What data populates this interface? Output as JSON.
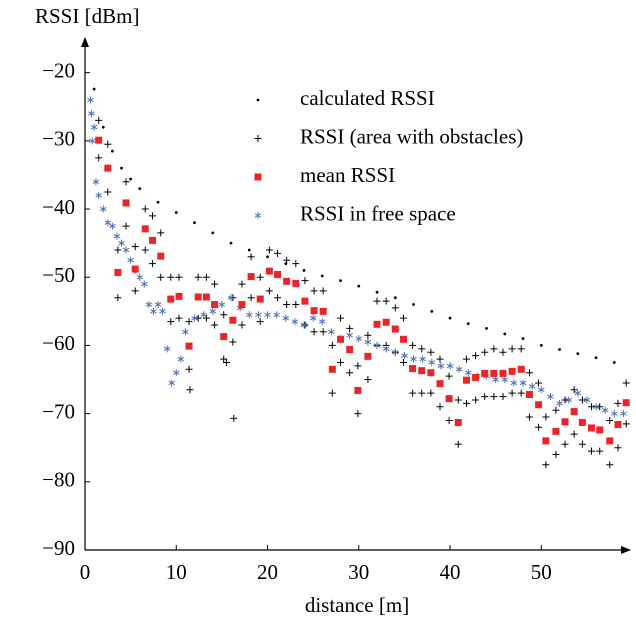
{
  "chart_data": {
    "type": "scatter",
    "xlabel": "distance [m]",
    "ylabel": "RSSI [dBm]",
    "xlim": [
      0,
      59.5
    ],
    "ylim": [
      -90,
      -15.5
    ],
    "xticks": [
      0,
      10,
      20,
      30,
      40,
      50
    ],
    "yticks": [
      {
        "value": -90,
        "label": "−90"
      },
      {
        "value": -80,
        "label": "−80"
      },
      {
        "value": -70,
        "label": "−70"
      },
      {
        "value": -60,
        "label": "−60"
      },
      {
        "value": -50,
        "label": "−50"
      },
      {
        "value": -40,
        "label": "−40"
      },
      {
        "value": -30,
        "label": "−30"
      },
      {
        "value": -20,
        "label": "−20"
      }
    ],
    "legend": "upper right",
    "series": [
      {
        "name": "calculated RSSI",
        "color": "#000000",
        "marker": "dot",
        "x": [
          1,
          2,
          3,
          4,
          5,
          6,
          8,
          10,
          12,
          14,
          16,
          18,
          20,
          22,
          24,
          26,
          28,
          30,
          32,
          34,
          36,
          38,
          40,
          42,
          44,
          46,
          48,
          50,
          52,
          54,
          56,
          58
        ],
        "values": [
          -22.4,
          -28,
          -31.5,
          -34,
          -35.6,
          -37,
          -39,
          -40.5,
          -42,
          -43.5,
          -45,
          -46,
          -47,
          -48,
          -49,
          -49.8,
          -50.5,
          -51.3,
          -52.2,
          -53,
          -54,
          -55,
          -56,
          -56.8,
          -57.5,
          -58.3,
          -59,
          -60,
          -60.6,
          -61.2,
          -61.8,
          -62.5
        ]
      },
      {
        "name": "RSSI (area with obstacles)",
        "color": "#000000",
        "marker": "plus",
        "x": [
          1.5,
          1.5,
          2.5,
          2.5,
          3.6,
          3.6,
          4.5,
          4.5,
          5.5,
          5.5,
          6.6,
          6.6,
          7.4,
          7.4,
          8.3,
          8.3,
          9.4,
          9.4,
          10.3,
          10.3,
          11.4,
          11.4,
          12.4,
          12.4,
          13.3,
          13.3,
          14.2,
          14.2,
          15.2,
          15.2,
          16.2,
          16.2,
          17.2,
          17.2,
          18.2,
          18.2,
          19.2,
          19.2,
          20.2,
          20.2,
          21.1,
          21.1,
          22.1,
          22.1,
          23.1,
          23.1,
          24.1,
          24.1,
          25.1,
          25.1,
          26.1,
          26.1,
          27.1,
          27.1,
          28,
          28,
          29,
          29,
          29.9,
          29.9,
          31,
          31,
          32,
          32,
          33,
          33,
          34,
          34,
          34.9,
          34.9,
          35.9,
          35.9,
          36.9,
          36.9,
          37.9,
          37.9,
          38.9,
          38.9,
          39.9,
          39.9,
          40.9,
          40.9,
          41.8,
          41.8,
          42.8,
          42.8,
          43.8,
          43.8,
          44.8,
          44.8,
          45.8,
          45.8,
          46.8,
          46.8,
          47.8,
          47.8,
          48.7,
          48.7,
          49.7,
          49.7,
          50.5,
          50.5,
          51.6,
          51.6,
          52.6,
          52.6,
          53.6,
          53.6,
          54.5,
          54.5,
          55.5,
          55.5,
          56.4,
          56.4,
          57.5,
          57.5,
          58.4,
          58.4,
          59.3,
          59.3,
          11.5,
          15.5,
          16.3
        ],
        "values": [
          -27,
          -32.5,
          -30.5,
          -37.5,
          -46,
          -53,
          -36,
          -42.5,
          -45.5,
          -52,
          -40,
          -46,
          -41,
          -48,
          -43.5,
          -50,
          -50,
          -56.5,
          -50,
          -56,
          -56.5,
          -63.5,
          -50,
          -56,
          -50,
          -56,
          -51,
          -57,
          -55.5,
          -62,
          -53,
          -59.5,
          -51,
          -57,
          -47,
          -53,
          -50,
          -56.5,
          -46,
          -52,
          -46.5,
          -53,
          -47.5,
          -54,
          -48,
          -54,
          -50.5,
          -57,
          -52,
          -58,
          -52,
          -58,
          -60,
          -67,
          -56,
          -62.5,
          -57.5,
          -64,
          -63,
          -70,
          -58.5,
          -65,
          -53.5,
          -60,
          -53.5,
          -60,
          -54.5,
          -61,
          -56,
          -62.5,
          -60,
          -67,
          -60.5,
          -67,
          -61,
          -67,
          -62,
          -69,
          -64.5,
          -71,
          -68,
          -74.5,
          -62,
          -68.5,
          -61.5,
          -68,
          -61,
          -67.5,
          -60.5,
          -67.5,
          -61,
          -67.5,
          -60.5,
          -67,
          -60.5,
          -67,
          -64,
          -70.5,
          -65.5,
          -72,
          -70.5,
          -77.5,
          -69.5,
          -76,
          -68,
          -74.5,
          -66.5,
          -73,
          -68,
          -74.5,
          -69,
          -75.5,
          -69,
          -75.5,
          -71,
          -77.5,
          -68.5,
          -75,
          -65.5,
          -71.5,
          -66.5,
          -62.5,
          -70.7
        ]
      },
      {
        "name": "mean RSSI",
        "color": "#e8262a",
        "marker": "square",
        "x": [
          1.5,
          2.5,
          3.6,
          4.5,
          5.5,
          6.6,
          7.4,
          8.3,
          9.4,
          10.3,
          11.4,
          12.4,
          13.3,
          14.2,
          15.2,
          16.2,
          17.2,
          18.2,
          19.2,
          20.2,
          21.1,
          22.1,
          23.1,
          24.1,
          25.1,
          26.1,
          27.1,
          28,
          29,
          29.9,
          31,
          32,
          33,
          34,
          34.9,
          35.9,
          36.9,
          37.9,
          38.9,
          39.9,
          40.9,
          41.8,
          42.8,
          43.8,
          44.8,
          45.8,
          46.8,
          47.8,
          48.7,
          49.7,
          50.5,
          51.6,
          52.6,
          53.6,
          54.5,
          55.5,
          56.4,
          57.5,
          58.4,
          59.3
        ],
        "values": [
          -29.9,
          -34,
          -49.3,
          -39.1,
          -48.8,
          -42.9,
          -44.6,
          -46.9,
          -53.2,
          -52.8,
          -60.1,
          -52.9,
          -52.9,
          -54,
          -58.7,
          -56.3,
          -54,
          -49.9,
          -53.2,
          -49.1,
          -49.6,
          -50.6,
          -50.9,
          -53.5,
          -54.9,
          -55,
          -63.5,
          -59.1,
          -60.6,
          -66.6,
          -61.6,
          -56.9,
          -56.6,
          -57.6,
          -59.1,
          -63.4,
          -63.7,
          -64,
          -65.6,
          -67.8,
          -71.3,
          -65.1,
          -64.7,
          -64.1,
          -64.1,
          -64.1,
          -63.8,
          -63.5,
          -67.2,
          -68.7,
          -74,
          -72.6,
          -71.2,
          -69.7,
          -71.3,
          -72.1,
          -72.4,
          -74,
          -71.6,
          -68.4
        ]
      },
      {
        "name": "RSSI in free space",
        "color": "#4f6fb5",
        "marker": "asterisk",
        "x": [
          0.6,
          0.7,
          0.8,
          1,
          1.2,
          1.5,
          2,
          2.5,
          3,
          3.5,
          4,
          4.5,
          5,
          5.5,
          6,
          6.5,
          7,
          7.5,
          8,
          8.5,
          9,
          9.5,
          10,
          10.5,
          11,
          12,
          13,
          14,
          15,
          16,
          17,
          18,
          19,
          20,
          21,
          22,
          23,
          24,
          25,
          26,
          27,
          28,
          29,
          30,
          31,
          32,
          33,
          34,
          35,
          36,
          37,
          38,
          39,
          40,
          41,
          42,
          43,
          44,
          45,
          46,
          47,
          48,
          49,
          50,
          51,
          52,
          53,
          54,
          55,
          56,
          57,
          58,
          59
        ],
        "values": [
          -24,
          -26,
          -30,
          -28,
          -36,
          -38,
          -40,
          -42,
          -42.5,
          -44,
          -45,
          -46,
          -47.5,
          -49,
          -50,
          -51,
          -54,
          -55,
          -54,
          -55,
          -60.5,
          -65.5,
          -64,
          -62,
          -58,
          -56,
          -55.5,
          -55,
          -54,
          -53,
          -54.5,
          -55.5,
          -55.5,
          -55.5,
          -55.5,
          -56,
          -56.5,
          -57,
          -56,
          -56.5,
          -58,
          -59,
          -58.5,
          -59,
          -59.5,
          -60,
          -60.5,
          -61,
          -61.5,
          -62,
          -62,
          -62.5,
          -63,
          -63,
          -63.5,
          -64,
          -64.5,
          -64.5,
          -65,
          -65,
          -65.5,
          -65.5,
          -66,
          -66.5,
          -67.5,
          -68.5,
          -68,
          -67,
          -68,
          -69,
          -69.5,
          -70,
          -70
        ]
      }
    ]
  }
}
